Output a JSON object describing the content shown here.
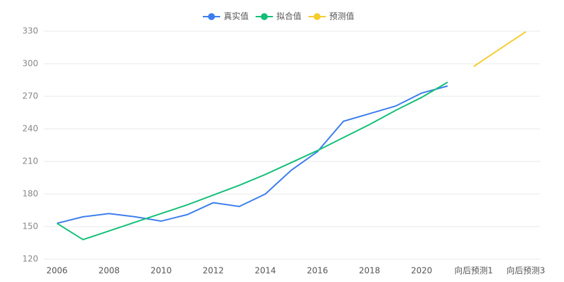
{
  "chart_data": {
    "type": "line",
    "categories": [
      "2006",
      null,
      "2008",
      null,
      "2010",
      null,
      "2012",
      null,
      "2014",
      null,
      "2016",
      null,
      "2018",
      null,
      "2020",
      null,
      "向后预测1",
      null,
      "向后预测3"
    ],
    "series": [
      {
        "name": "真实值",
        "color": "#3b7ded",
        "values": [
          153,
          159,
          162,
          159,
          155,
          161,
          172,
          168.5,
          180,
          202,
          219,
          247,
          254,
          261,
          273,
          279.5,
          null,
          null,
          null
        ]
      },
      {
        "name": "拟合值",
        "color": "#12bf78",
        "values": [
          153,
          138,
          146,
          154,
          162,
          170,
          179,
          188,
          198,
          209,
          220,
          232,
          244,
          257,
          269,
          283,
          null,
          null,
          null
        ]
      },
      {
        "name": "预测值",
        "color": "#f5cc2e",
        "values": [
          null,
          null,
          null,
          null,
          null,
          null,
          null,
          null,
          null,
          null,
          null,
          null,
          null,
          null,
          null,
          null,
          297.5,
          313.5,
          329.5
        ]
      }
    ],
    "ylim": [
      120,
      330
    ],
    "yticks": [
      120,
      150,
      180,
      210,
      240,
      270,
      300,
      330
    ],
    "grid": true
  }
}
